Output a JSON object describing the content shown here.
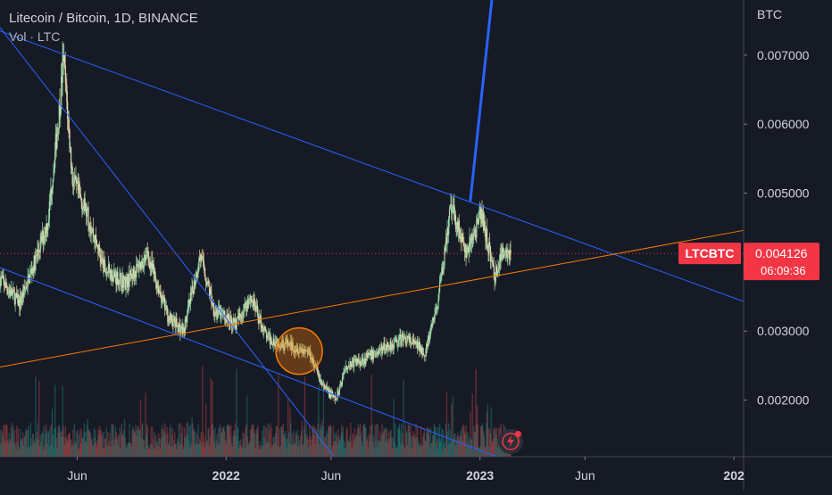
{
  "legend": {
    "title": "Litecoin / Bitcoin, 1D, BINANCE",
    "volume_label": "Vol · LTC"
  },
  "price_axis": {
    "unit": "BTC",
    "ticks": [
      "0.007000",
      "0.006000",
      "0.005000",
      "0.003000",
      "0.002000"
    ]
  },
  "time_axis": {
    "ticks": [
      "Jun",
      "2022",
      "Jun",
      "2023",
      "Jun",
      "202"
    ]
  },
  "last_price": {
    "symbol": "LTCBTC",
    "value": "0.004126",
    "countdown": "06:09:36",
    "color": "#f23645"
  },
  "colors": {
    "up": "#26a69a",
    "down": "#ef5350",
    "candle_up_body": "#a5d6a7",
    "candle_down_body": "#e8d9b5",
    "trendline_blue": "#2962ff",
    "support_orange": "#f57c00",
    "background": "#161a25"
  },
  "alert_icon": "lightning-alert-icon",
  "chart_data": {
    "type": "candlestick",
    "symbol": "LTCBTC",
    "interval": "1D",
    "exchange": "BINANCE",
    "y_range": [
      0.00118,
      0.0078
    ],
    "x_range": [
      "2021-02-10",
      "2024-01-15"
    ],
    "price_path": [
      {
        "date": "2021-02-15",
        "price": 0.0037
      },
      {
        "date": "2021-03-10",
        "price": 0.0034
      },
      {
        "date": "2021-04-01",
        "price": 0.004
      },
      {
        "date": "2021-04-20",
        "price": 0.0046
      },
      {
        "date": "2021-05-08",
        "price": 0.0064
      },
      {
        "date": "2021-05-12",
        "price": 0.007
      },
      {
        "date": "2021-05-25",
        "price": 0.0052
      },
      {
        "date": "2021-06-15",
        "price": 0.0047
      },
      {
        "date": "2021-07-10",
        "price": 0.0039
      },
      {
        "date": "2021-08-10",
        "price": 0.0037
      },
      {
        "date": "2021-09-10",
        "price": 0.0041
      },
      {
        "date": "2021-10-10",
        "price": 0.0032
      },
      {
        "date": "2021-11-01",
        "price": 0.003
      },
      {
        "date": "2021-11-25",
        "price": 0.0041
      },
      {
        "date": "2021-12-15",
        "price": 0.0033
      },
      {
        "date": "2022-01-15",
        "price": 0.0031
      },
      {
        "date": "2022-02-05",
        "price": 0.0035
      },
      {
        "date": "2022-03-01",
        "price": 0.0029
      },
      {
        "date": "2022-04-01",
        "price": 0.0028
      },
      {
        "date": "2022-05-01",
        "price": 0.0027
      },
      {
        "date": "2022-05-20",
        "price": 0.0022
      },
      {
        "date": "2022-06-08",
        "price": 0.002
      },
      {
        "date": "2022-06-22",
        "price": 0.0025
      },
      {
        "date": "2022-07-20",
        "price": 0.0026
      },
      {
        "date": "2022-08-25",
        "price": 0.0028
      },
      {
        "date": "2022-09-15",
        "price": 0.0029
      },
      {
        "date": "2022-10-15",
        "price": 0.0027
      },
      {
        "date": "2022-11-01",
        "price": 0.0034
      },
      {
        "date": "2022-11-20",
        "price": 0.0048
      },
      {
        "date": "2022-12-01",
        "price": 0.0045
      },
      {
        "date": "2022-12-12",
        "price": 0.0041
      },
      {
        "date": "2023-01-03",
        "price": 0.0047
      },
      {
        "date": "2023-01-22",
        "price": 0.0038
      },
      {
        "date": "2023-02-05",
        "price": 0.0042
      },
      {
        "date": "2023-02-14",
        "price": 0.004126
      }
    ],
    "volume_scale": [
      0,
      1
    ],
    "trendlines": [
      {
        "name": "descending resistance",
        "color": "#2962ff",
        "points": [
          {
            "date": "2021-02-10",
            "price": 0.00735
          },
          {
            "date": "2024-01-15",
            "price": 0.00343
          }
        ]
      },
      {
        "name": "steep descending line",
        "color": "#2962ff",
        "points": [
          {
            "date": "2021-02-10",
            "price": 0.0074
          },
          {
            "date": "2022-06-05",
            "price": 0.00118
          }
        ]
      },
      {
        "name": "lower channel line",
        "color": "#2962ff",
        "points": [
          {
            "date": "2021-02-10",
            "price": 0.00392
          },
          {
            "date": "2023-01-25",
            "price": 0.00118
          }
        ]
      },
      {
        "name": "rising support",
        "color": "#f57c00",
        "points": [
          {
            "date": "2021-02-10",
            "price": 0.00248
          },
          {
            "date": "2024-01-15",
            "price": 0.00446
          }
        ]
      },
      {
        "name": "projection arrow",
        "color": "#2962ff",
        "points": [
          {
            "date": "2022-12-18",
            "price": 0.00488
          },
          {
            "date": "2023-01-18",
            "price": 0.0078
          }
        ]
      }
    ],
    "highlight": {
      "shape": "circle",
      "center": {
        "date": "2022-04-16",
        "price": 0.00271
      },
      "color": "#f57c00"
    }
  }
}
